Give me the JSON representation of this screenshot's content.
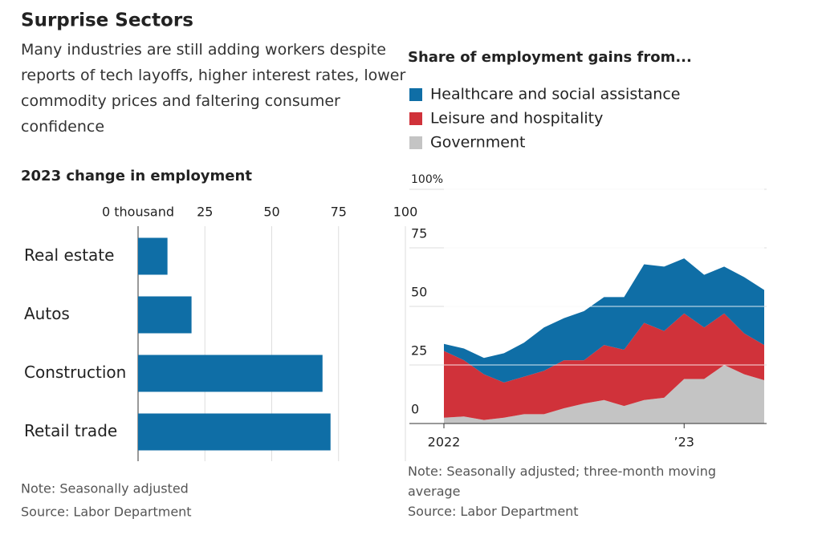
{
  "header": {
    "title": "Surprise Sectors",
    "subtitle": "Many industries are still adding workers despite reports of tech layoffs, higher interest rates, lower commodity prices and faltering consumer confidence"
  },
  "chart_data": [
    {
      "type": "bar",
      "horizontal": true,
      "title": "2023 change in employment",
      "categories": [
        "Real estate",
        "Autos",
        "Construction",
        "Retail trade"
      ],
      "values": [
        11,
        20,
        69,
        72
      ],
      "color": "#0f6ea6",
      "xlim": [
        0,
        100
      ],
      "xticks": [
        {
          "value": 0,
          "label": "0 thousand"
        },
        25,
        50,
        75,
        100
      ],
      "grid": true,
      "note": "Note: Seasonally adjusted",
      "source": "Source: Labor Department"
    },
    {
      "type": "stacked-area",
      "title": "Share of employment gains from...",
      "categories": [
        "2022",
        null,
        null,
        null,
        null,
        null,
        null,
        null,
        null,
        null,
        null,
        null,
        "’23",
        null,
        null,
        null,
        null
      ],
      "series": [
        {
          "name": "Healthcare and social assistance",
          "color": "#0f6ea6",
          "values": [
            3,
            5,
            7,
            12.5,
            14.5,
            18.5,
            18,
            21,
            20.5,
            22.5,
            25,
            27.5,
            23.5,
            22.5,
            20,
            24,
            23.5
          ]
        },
        {
          "name": "Leisure and hospitality",
          "color": "#d0323a",
          "values": [
            28.5,
            24,
            19.5,
            15,
            16,
            18.5,
            20.5,
            18.5,
            23.5,
            24,
            33,
            28.5,
            28,
            22,
            22,
            17.5,
            15
          ]
        },
        {
          "name": "Government",
          "color": "#c4c4c4",
          "values": [
            2.5,
            3,
            1.5,
            2.5,
            4,
            4,
            6.5,
            8.5,
            10,
            7.5,
            10,
            11,
            19,
            19,
            25,
            21,
            18.5
          ]
        }
      ],
      "ylim": [
        0,
        100
      ],
      "yticks": [
        0,
        25,
        50,
        75,
        {
          "value": 100,
          "label": "100%"
        }
      ],
      "grid": true,
      "note": "Note: Seasonally adjusted; three-month moving average",
      "source": "Source: Labor Department"
    }
  ]
}
